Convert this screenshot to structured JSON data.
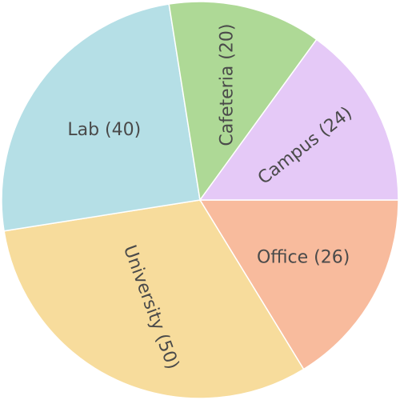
{
  "chart_data": {
    "type": "pie",
    "categories": [
      "Office",
      "University",
      "Lab",
      "Cafeteria",
      "Campus"
    ],
    "values": [
      26,
      50,
      40,
      20,
      24
    ],
    "labels": [
      "Office (26)",
      "University (50)",
      "Lab (40)",
      "Cafeteria (20)",
      "Campus (24)"
    ],
    "colors": [
      "#f8bb9d",
      "#f7dc9c",
      "#b5dfe6",
      "#aed996",
      "#e5c9f7"
    ],
    "start_angle_deg": 0,
    "direction": "clockwise"
  }
}
